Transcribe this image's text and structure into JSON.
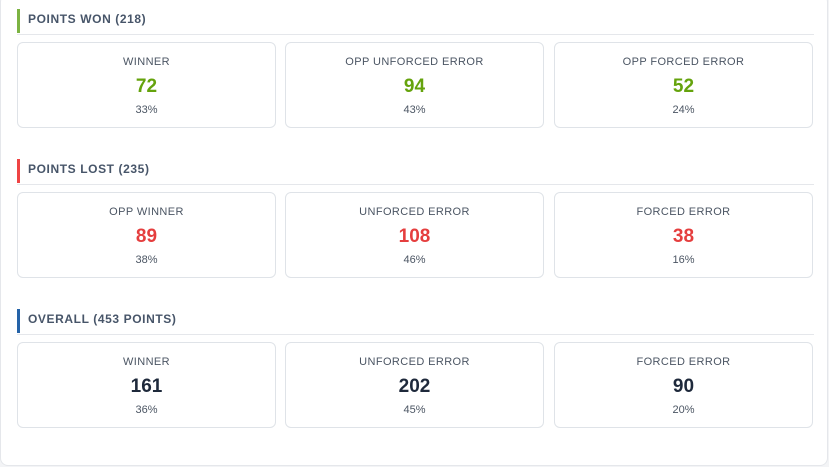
{
  "sections": [
    {
      "title": "POINTS WON (218)",
      "accent_color": "#7cb342",
      "value_color": "#65a30d",
      "cards": [
        {
          "label": "WINNER",
          "value": "72",
          "pct": "33%"
        },
        {
          "label": "OPP UNFORCED ERROR",
          "value": "94",
          "pct": "43%"
        },
        {
          "label": "OPP FORCED ERROR",
          "value": "52",
          "pct": "24%"
        }
      ]
    },
    {
      "title": "POINTS LOST (235)",
      "accent_color": "#ef4444",
      "value_color": "#e53e3e",
      "cards": [
        {
          "label": "OPP WINNER",
          "value": "89",
          "pct": "38%"
        },
        {
          "label": "UNFORCED ERROR",
          "value": "108",
          "pct": "46%"
        },
        {
          "label": "FORCED ERROR",
          "value": "38",
          "pct": "16%"
        }
      ]
    },
    {
      "title": "OVERALL (453 POINTS)",
      "accent_color": "#2563a8",
      "value_color": "#1e293b",
      "cards": [
        {
          "label": "WINNER",
          "value": "161",
          "pct": "36%"
        },
        {
          "label": "UNFORCED ERROR",
          "value": "202",
          "pct": "45%"
        },
        {
          "label": "FORCED ERROR",
          "value": "90",
          "pct": "20%"
        }
      ]
    }
  ]
}
